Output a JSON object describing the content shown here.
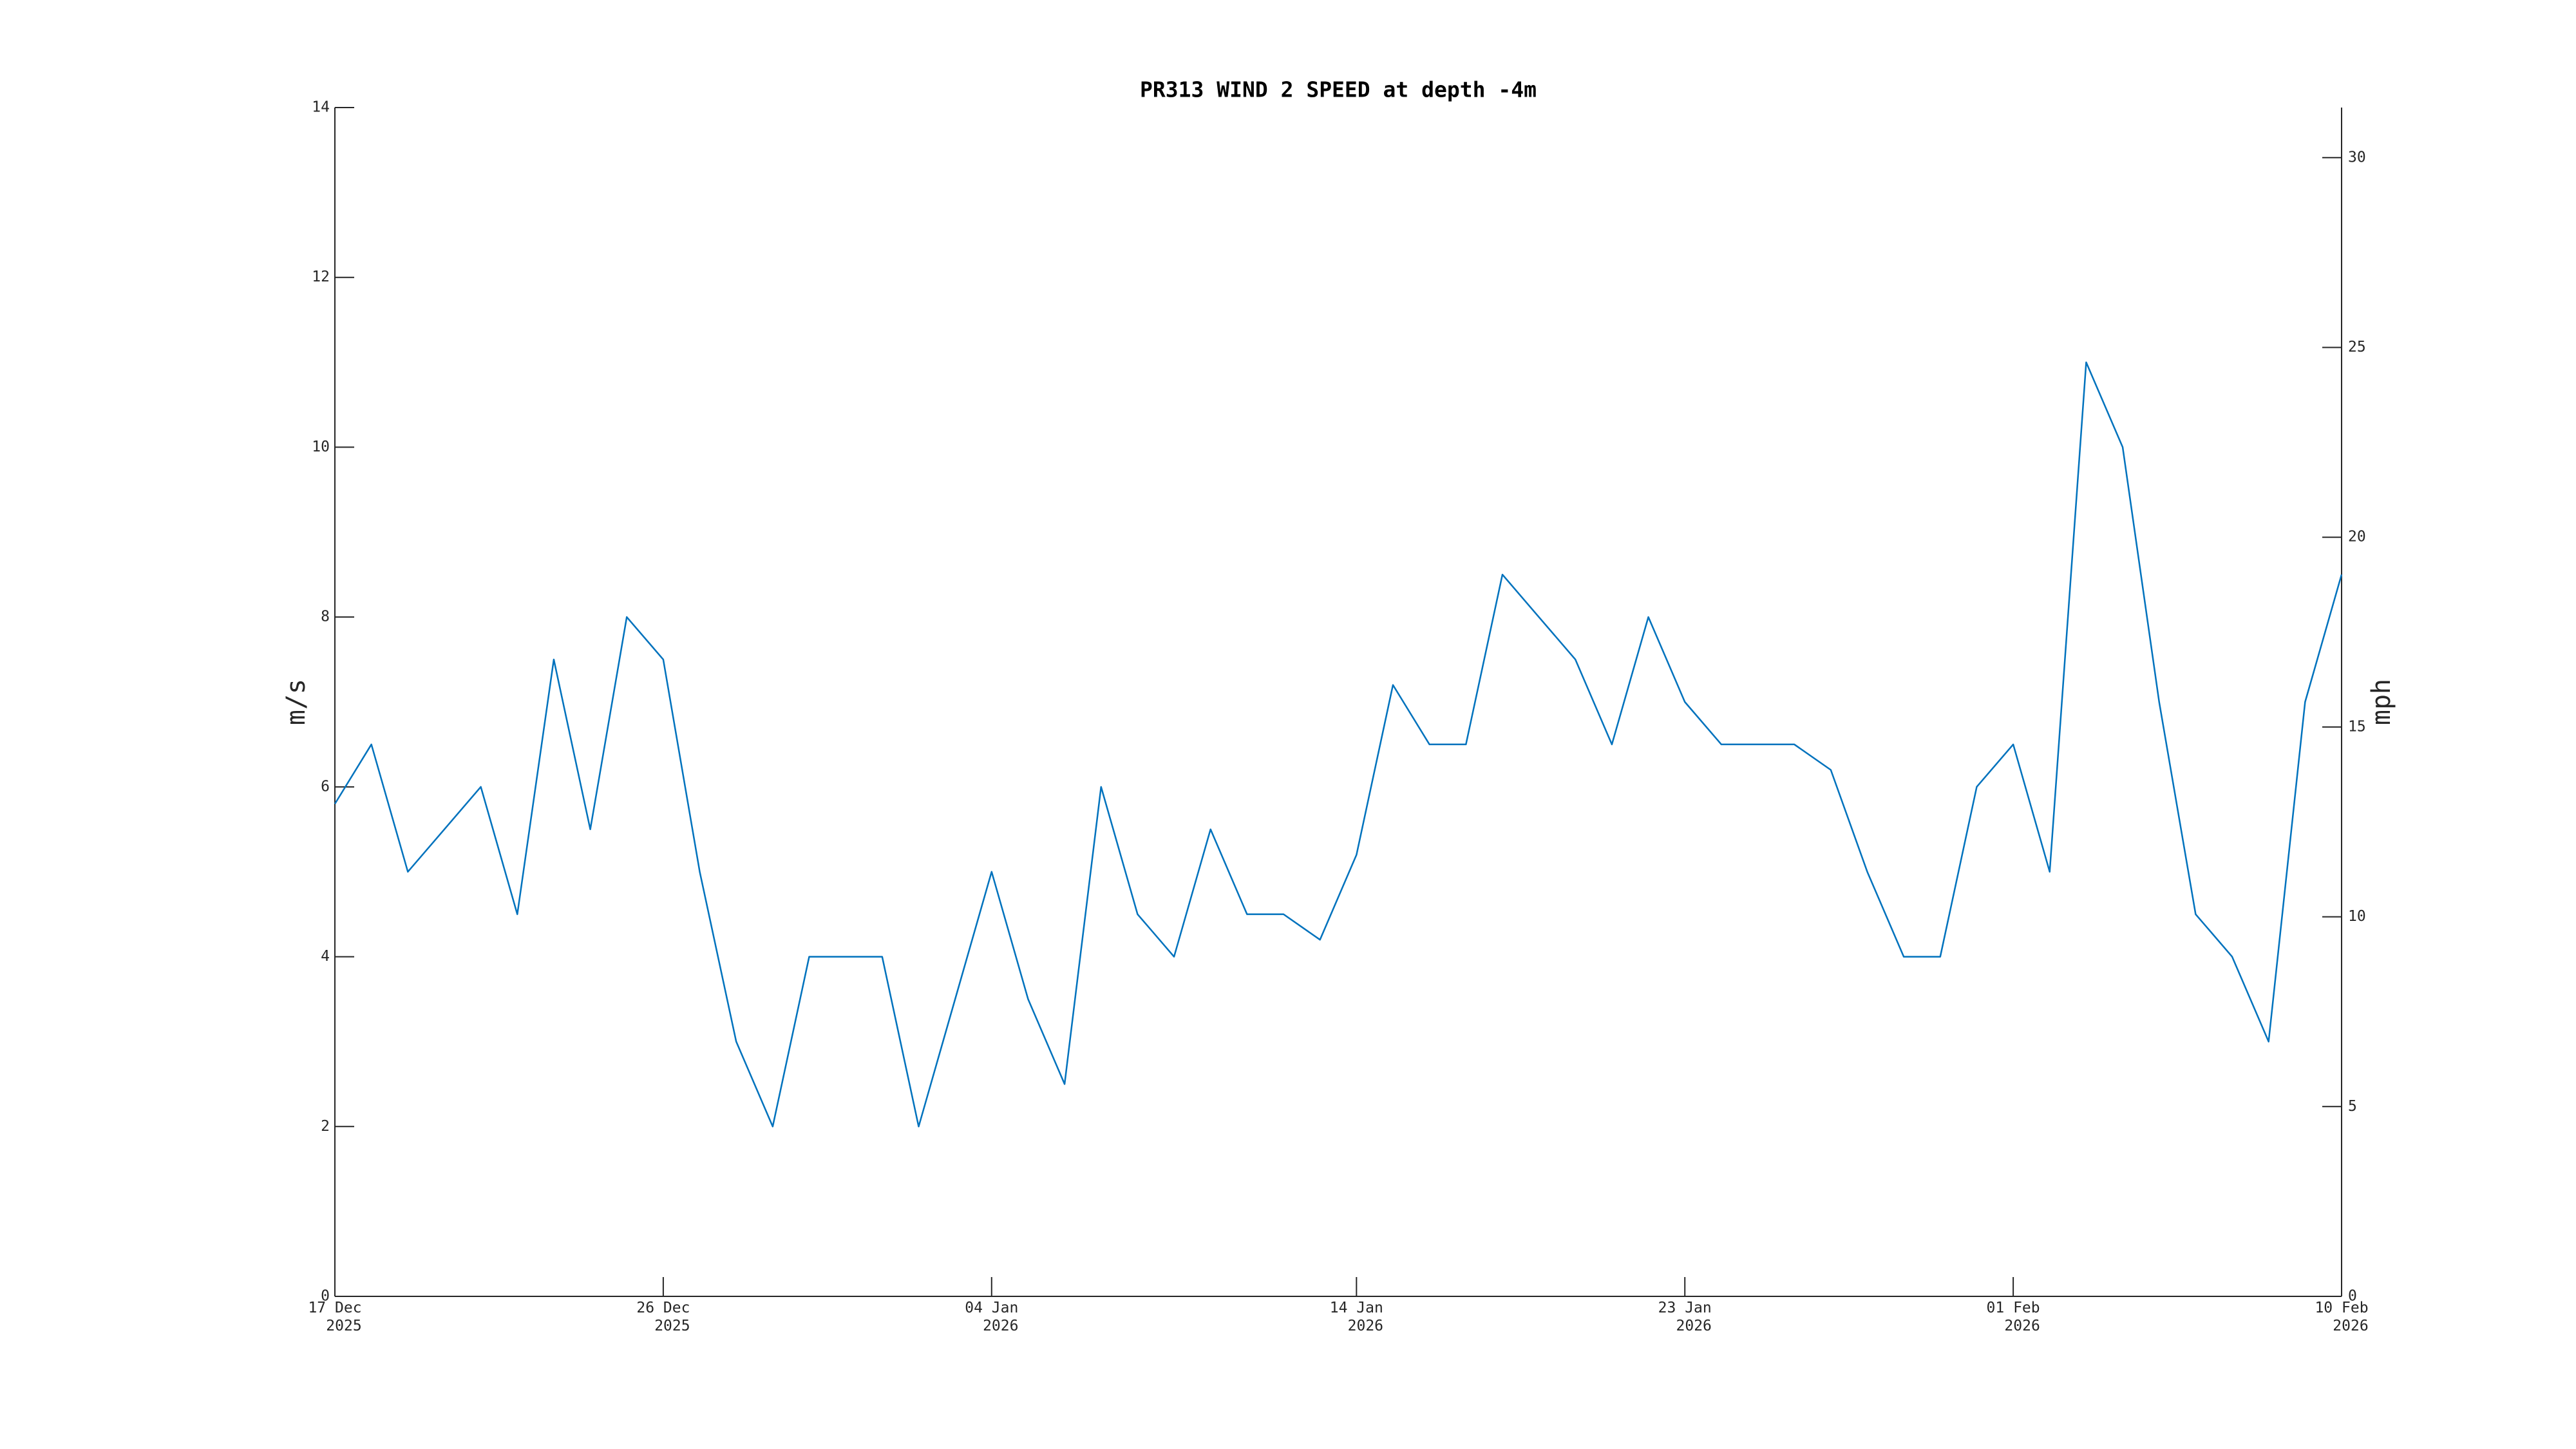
{
  "chart_data": {
    "type": "line",
    "title": "PR313 WIND 2 SPEED at depth -4m",
    "y_label": "m/s",
    "y2_label": "mph",
    "x": [
      "2025-12-17",
      "2025-12-18",
      "2025-12-19",
      "2025-12-20",
      "2025-12-21",
      "2025-12-22",
      "2025-12-23",
      "2025-12-24",
      "2025-12-25",
      "2025-12-26",
      "2025-12-27",
      "2025-12-28",
      "2025-12-29",
      "2025-12-30",
      "2025-12-31",
      "2026-01-01",
      "2026-01-02",
      "2026-01-03",
      "2026-01-04",
      "2026-01-05",
      "2026-01-06",
      "2026-01-07",
      "2026-01-08",
      "2026-01-09",
      "2026-01-10",
      "2026-01-11",
      "2026-01-12",
      "2026-01-13",
      "2026-01-14",
      "2026-01-15",
      "2026-01-16",
      "2026-01-17",
      "2026-01-18",
      "2026-01-19",
      "2026-01-20",
      "2026-01-21",
      "2026-01-22",
      "2026-01-23",
      "2026-01-24",
      "2026-01-25",
      "2026-01-26",
      "2026-01-27",
      "2026-01-28",
      "2026-01-29",
      "2026-01-30",
      "2026-01-31",
      "2026-02-01",
      "2026-02-02",
      "2026-02-03",
      "2026-02-04",
      "2026-02-05",
      "2026-02-06",
      "2026-02-07",
      "2026-02-08",
      "2026-02-09",
      "2026-02-10"
    ],
    "series": [
      {
        "color": "#0072bd",
        "values": [
          5.8,
          6.5,
          5,
          5.5,
          6,
          4.5,
          7.5,
          5.5,
          8,
          7.5,
          5,
          3,
          2,
          4,
          4,
          4,
          2,
          3.5,
          5,
          3.5,
          2.5,
          6,
          4.5,
          4,
          5.5,
          4.5,
          4.5,
          4.2,
          5.2,
          7.2,
          6.5,
          6.5,
          8.5,
          8,
          7.5,
          6.5,
          8,
          7,
          6.5,
          6.5,
          6.5,
          6.2,
          5,
          4,
          4,
          6,
          6.5,
          5,
          11,
          10,
          7,
          4.5,
          4,
          3,
          7,
          8.5
        ]
      }
    ],
    "xlim": [
      "2025-12-17",
      "2026-02-10"
    ],
    "xticks": [
      {
        "value": "2025-12-17",
        "label": "17 Dec\n2025"
      },
      {
        "value": "2025-12-26",
        "label": "26 Dec\n2025"
      },
      {
        "value": "2026-01-04",
        "label": "04 Jan\n2026"
      },
      {
        "value": "2026-01-14",
        "label": "14 Jan\n2026"
      },
      {
        "value": "2026-01-23",
        "label": "23 Jan\n2026"
      },
      {
        "value": "2026-02-01",
        "label": "01 Feb\n2026"
      },
      {
        "value": "2026-02-10",
        "label": "10 Feb\n2026"
      }
    ],
    "ylim": [
      0,
      14
    ],
    "yticks": [
      0,
      2,
      4,
      6,
      8,
      10,
      12,
      14
    ],
    "y2lim": [
      0,
      31.32
    ],
    "y2ticks": [
      0,
      5,
      10,
      15,
      20,
      25,
      30
    ],
    "grid": false
  }
}
